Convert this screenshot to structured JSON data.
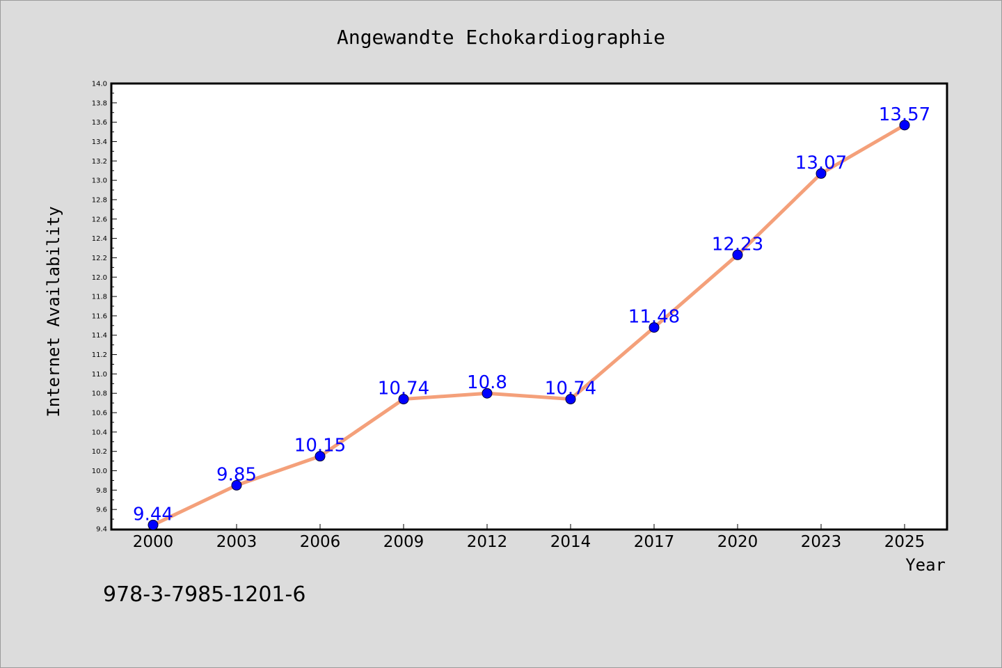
{
  "footer": {
    "isbn": "978-3-7985-1201-6"
  },
  "colors": {
    "background": "#dcdcdc",
    "plot_background": "#ffffff",
    "line": "#f4a07a",
    "marker": "#0000ff",
    "data_label": "#0000ff"
  },
  "chart_data": {
    "type": "line",
    "title": "Angewandte Echokardiographie",
    "xlabel": "Year",
    "ylabel": "Internet Availability",
    "categories": [
      "2000",
      "2003",
      "2006",
      "2009",
      "2012",
      "2014",
      "2017",
      "2020",
      "2023",
      "2025"
    ],
    "series": [
      {
        "values": [
          9.44,
          9.85,
          10.15,
          10.74,
          10.8,
          10.74,
          11.48,
          12.23,
          13.07,
          13.57
        ],
        "labels": [
          "9.44",
          "9.85",
          "10.15",
          "10.74",
          "10.8",
          "10.74",
          "11.48",
          "12.23",
          "13.07",
          "13.57"
        ]
      }
    ],
    "ylim": [
      9.4,
      14.0
    ],
    "yticks": [
      "9.4",
      "9.6",
      "9.8",
      "10.0",
      "10.2",
      "10.4",
      "10.6",
      "10.8",
      "11.0",
      "11.2",
      "11.4",
      "11.6",
      "11.8",
      "12.0",
      "12.2",
      "12.4",
      "12.6",
      "12.8",
      "13.0",
      "13.2",
      "13.4",
      "13.6",
      "13.8",
      "14.0"
    ],
    "grid": false,
    "legend": "none"
  }
}
